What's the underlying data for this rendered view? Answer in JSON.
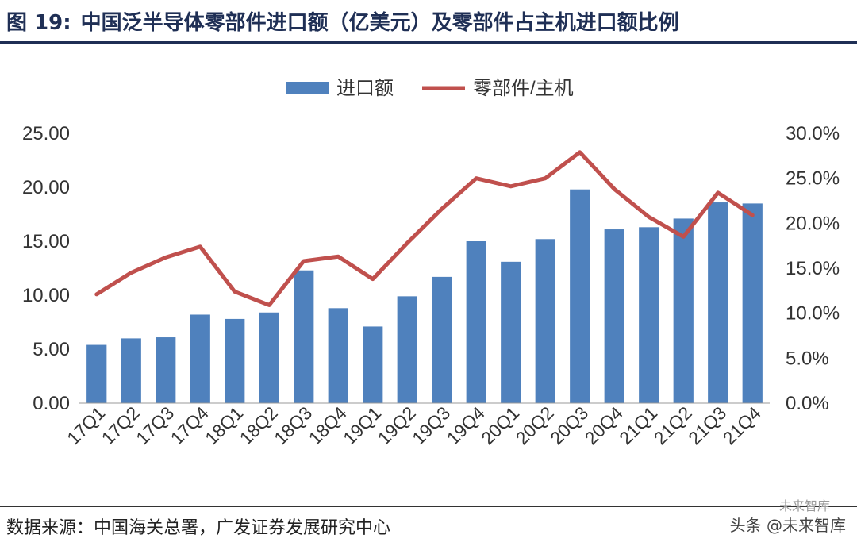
{
  "header": {
    "figure_label": "图 19:",
    "title": "中国泛半导体零部件进口额（亿美元）及零部件占主机进口额比例"
  },
  "chart_data": {
    "type": "bar+line",
    "title": "中国泛半导体零部件进口额（亿美元）及零部件占主机进口额比例",
    "categories": [
      "17Q1",
      "17Q2",
      "17Q3",
      "17Q4",
      "18Q1",
      "18Q2",
      "18Q3",
      "18Q4",
      "19Q1",
      "19Q2",
      "19Q3",
      "19Q4",
      "20Q1",
      "20Q2",
      "20Q3",
      "20Q4",
      "21Q1",
      "21Q2",
      "21Q3",
      "21Q4"
    ],
    "series": [
      {
        "name": "进口额",
        "type": "bar",
        "axis": "left",
        "color": "#4f81bd",
        "values": [
          5.4,
          6.0,
          6.1,
          8.2,
          7.8,
          8.4,
          12.3,
          8.8,
          7.1,
          9.9,
          11.7,
          15.0,
          13.1,
          15.2,
          19.8,
          16.1,
          16.3,
          17.1,
          18.6,
          18.5
        ]
      },
      {
        "name": "零部件/主机",
        "type": "line",
        "axis": "right",
        "color": "#c0504d",
        "values": [
          12.1,
          14.5,
          16.2,
          17.4,
          12.4,
          10.9,
          15.8,
          16.3,
          13.8,
          17.8,
          21.6,
          25.0,
          24.1,
          25.0,
          27.9,
          23.8,
          20.7,
          18.5,
          23.4,
          20.9
        ]
      }
    ],
    "left_axis": {
      "ylim": [
        0,
        25
      ],
      "ticks": [
        "0.00",
        "5.00",
        "10.00",
        "15.00",
        "20.00",
        "25.00"
      ]
    },
    "right_axis": {
      "ylim": [
        0,
        30
      ],
      "ticks": [
        "0.0%",
        "5.0%",
        "10.0%",
        "15.0%",
        "20.0%",
        "25.0%",
        "30.0%"
      ]
    },
    "legend_position": "top-center",
    "grid": false
  },
  "footer": {
    "source": "数据来源：中国海关总署，广发证券发展研究中心",
    "watermark": "头条 @未来智库",
    "watermark_sub": "未来智库"
  }
}
